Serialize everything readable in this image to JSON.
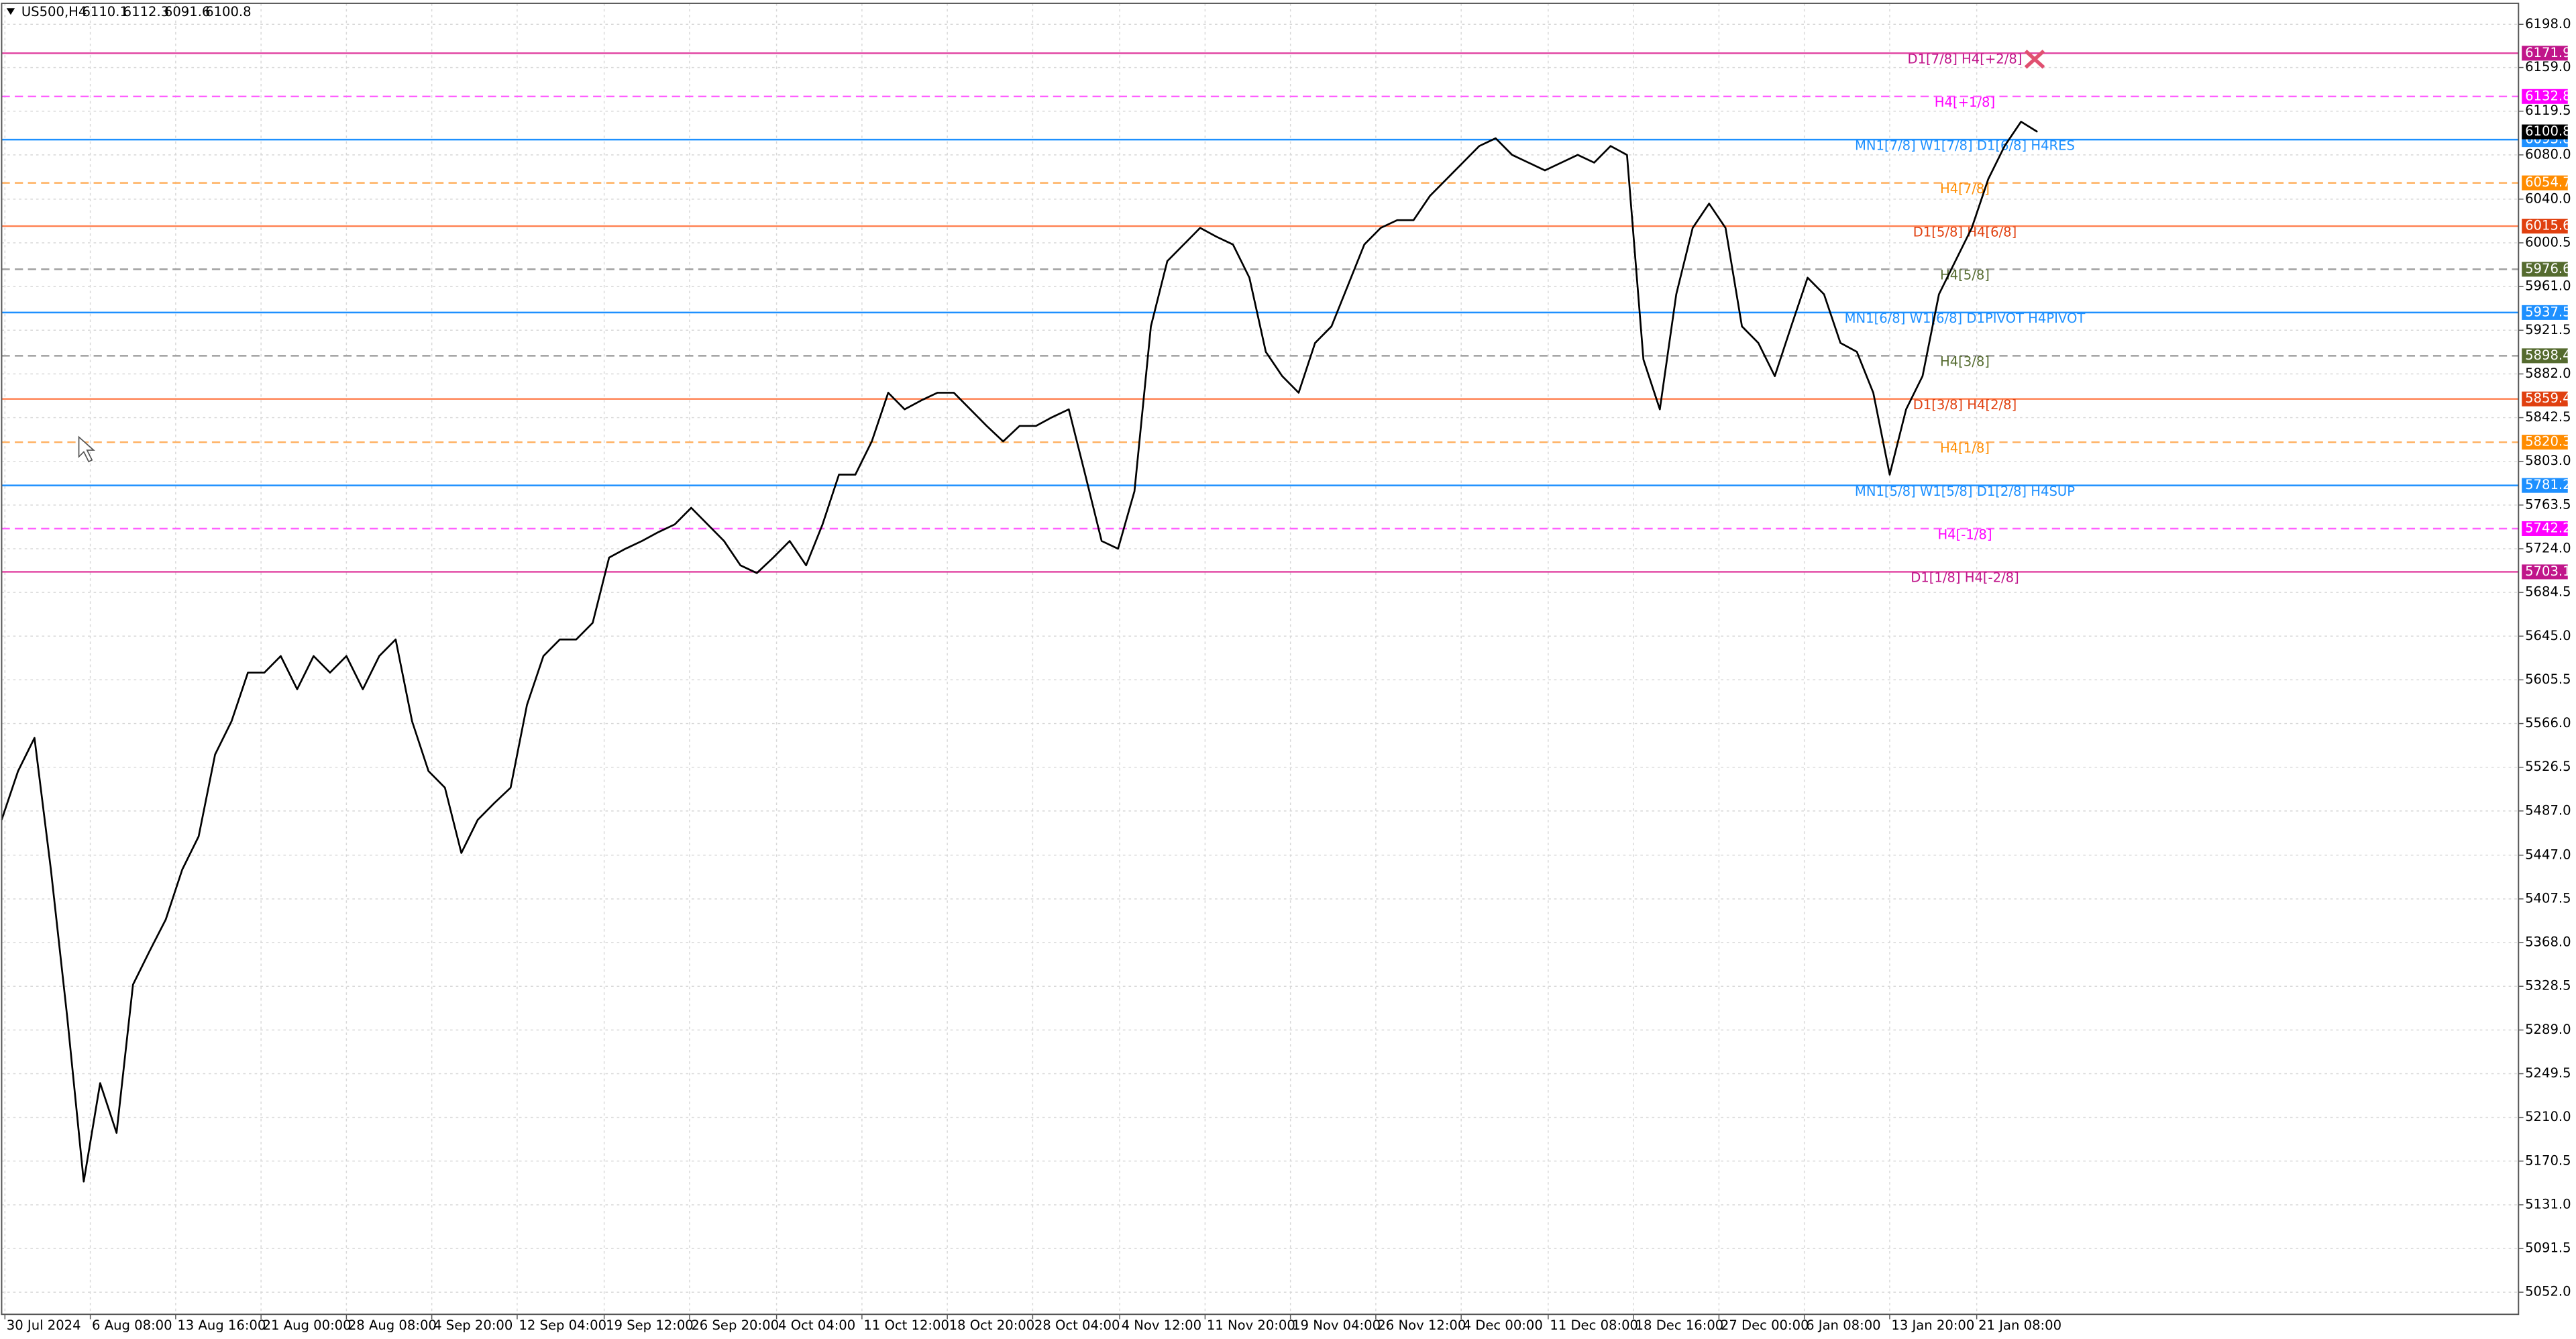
{
  "chart_data": {
    "type": "line",
    "symbol": "US500,H4",
    "ohlc": [
      6110.1,
      6112.3,
      6091.6,
      6100.8
    ],
    "x": [
      0,
      1,
      2,
      3,
      4,
      5,
      6,
      7,
      8,
      9,
      10,
      11,
      12,
      13,
      14,
      15,
      16,
      17,
      18,
      19,
      20,
      21,
      22,
      23,
      24,
      25,
      26,
      27,
      28,
      29,
      30,
      31,
      32,
      33,
      34,
      35,
      36,
      37,
      38,
      39,
      40,
      41,
      42,
      43,
      44,
      45,
      46,
      47,
      48,
      49,
      50,
      51,
      52,
      53,
      54,
      55,
      56,
      57,
      58,
      59,
      60,
      61,
      62,
      63,
      64,
      65,
      66,
      67,
      68,
      69,
      70,
      71,
      72,
      73,
      74,
      75,
      76,
      77,
      78,
      79,
      80,
      81,
      82,
      83,
      84,
      85,
      86,
      87,
      88,
      89,
      90,
      91,
      92,
      93,
      94,
      95,
      96,
      97,
      98,
      99,
      100,
      101,
      102,
      103,
      104,
      105,
      106,
      107,
      108,
      109,
      110,
      111,
      112,
      113,
      114,
      115,
      116,
      117,
      118,
      119,
      120,
      121,
      122,
      123,
      124
    ],
    "series": [
      {
        "color": "#000000",
        "values": [
          5479,
          5523,
          5553,
          5434,
          5300,
          5152,
          5241,
          5196,
          5330,
          5360,
          5389,
          5434,
          5464,
          5538,
          5568,
          5612,
          5612,
          5627,
          5597,
          5627,
          5612,
          5627,
          5597,
          5627,
          5642,
          5568,
          5523,
          5508,
          5449,
          5479,
          5494,
          5508,
          5583,
          5627,
          5642,
          5642,
          5657,
          5716,
          5724,
          5731,
          5739,
          5746,
          5761,
          5746,
          5731,
          5709,
          5702,
          5716,
          5731,
          5709,
          5746,
          5791,
          5791,
          5821,
          5865,
          5850,
          5858,
          5865,
          5865,
          5850,
          5835,
          5821,
          5835,
          5835,
          5843,
          5850,
          5791,
          5731,
          5724,
          5776,
          5925,
          5984,
          5999,
          6014,
          6006,
          5999,
          5969,
          5902,
          5880,
          5865,
          5910,
          5925,
          5962,
          5999,
          6014,
          6021,
          6021,
          6043,
          6058,
          6073,
          6088,
          6095,
          6080,
          6073,
          6066,
          6073,
          6080,
          6073,
          6088,
          6080,
          5895,
          5850,
          5954,
          6014,
          6036,
          6014,
          5925,
          5910,
          5880,
          5925,
          5969,
          5954,
          5910,
          5902,
          5865,
          5791,
          5850,
          5880,
          5954,
          5984,
          6014,
          6058,
          6088,
          6110,
          6100.8
        ]
      }
    ],
    "xlim": [
      0,
      153.3
    ],
    "xticks": [
      {
        "value": 0.2,
        "label": "30 Jul 2024"
      },
      {
        "value": 5.4,
        "label": "6 Aug 08:00"
      },
      {
        "value": 10.6,
        "label": "13 Aug 16:00"
      },
      {
        "value": 15.8,
        "label": "21 Aug 00:00"
      },
      {
        "value": 21.0,
        "label": "28 Aug 08:00"
      },
      {
        "value": 26.2,
        "label": "4 Sep 20:00"
      },
      {
        "value": 31.4,
        "label": "12 Sep 04:00"
      },
      {
        "value": 36.7,
        "label": "19 Sep 12:00"
      },
      {
        "value": 41.9,
        "label": "26 Sep 20:00"
      },
      {
        "value": 47.2,
        "label": "4 Oct 04:00"
      },
      {
        "value": 52.4,
        "label": "11 Oct 12:00"
      },
      {
        "value": 57.6,
        "label": "18 Oct 20:00"
      },
      {
        "value": 62.8,
        "label": "28 Oct 04:00"
      },
      {
        "value": 68.1,
        "label": "4 Nov 12:00"
      },
      {
        "value": 73.3,
        "label": "11 Nov 20:00"
      },
      {
        "value": 78.5,
        "label": "19 Nov 04:00"
      },
      {
        "value": 83.7,
        "label": "26 Nov 12:00"
      },
      {
        "value": 88.9,
        "label": "4 Dec 00:00"
      },
      {
        "value": 94.2,
        "label": "11 Dec 08:00"
      },
      {
        "value": 99.4,
        "label": "18 Dec 16:00"
      },
      {
        "value": 104.6,
        "label": "27 Dec 00:00"
      },
      {
        "value": 109.8,
        "label": "6 Jan 08:00"
      },
      {
        "value": 115.0,
        "label": "13 Jan 20:00"
      },
      {
        "value": 120.3,
        "label": "21 Jan 08:00"
      }
    ],
    "ylim": [
      5032,
      6217
    ],
    "yticks": [
      {
        "value": 6198,
        "label": "6198.0"
      },
      {
        "value": 6159,
        "label": "6159.0"
      },
      6119.5,
      {
        "value": 6080,
        "label": "6080.0"
      },
      {
        "value": 6040,
        "label": "6040.0"
      },
      6000.5,
      {
        "value": 5961,
        "label": "5961.0"
      },
      5921.5,
      {
        "value": 5882,
        "label": "5882.0"
      },
      5842.5,
      {
        "value": 5803,
        "label": "5803.0"
      },
      5763.5,
      {
        "value": 5724,
        "label": "5724.0"
      },
      5684.5,
      {
        "value": 5645,
        "label": "5645.0"
      },
      5605.5,
      {
        "value": 5566,
        "label": "5566.0"
      },
      5526.5,
      {
        "value": 5487,
        "label": "5487.0"
      },
      {
        "value": 5447,
        "label": "5447.0"
      },
      5407.5,
      {
        "value": 5368,
        "label": "5368.0"
      },
      5328.5,
      {
        "value": 5289,
        "label": "5289.0"
      },
      5249.5,
      {
        "value": 5210,
        "label": "5210.0"
      },
      5170.5,
      {
        "value": 5131,
        "label": "5131.0"
      },
      5091.5,
      {
        "value": 5052,
        "label": "5052.0"
      }
    ],
    "grid": true,
    "levels": [
      {
        "label": "D1[7/8] H4[+2/8]",
        "value": 6171.9,
        "color": "#e040a0",
        "text_color": "#c0158a",
        "dash": false
      },
      {
        "label": "H4[+1/8]",
        "value": 6132.8,
        "color": "#ff60ff",
        "text_color": "#ff00ff",
        "dash": true
      },
      {
        "label": "MN1[7/8] W1[7/8] D1[6/8] H4RES",
        "value": 6093.8,
        "color": "#1e90ff",
        "text_color": "#1e90ff",
        "dash": false
      },
      {
        "label": "H4[7/8]",
        "value": 6054.7,
        "color": "#ffb060",
        "text_color": "#ff8c00",
        "dash": true
      },
      {
        "label": "D1[5/8] H4[6/8]",
        "value": 6015.6,
        "color": "#ff8050",
        "text_color": "#e04010",
        "dash": false
      },
      {
        "label": "H4[5/8]",
        "value": 5976.6,
        "color": "#a0a0a0",
        "text_color": "#556b2f",
        "dash": true
      },
      {
        "label": "MN1[6/8] W1[6/8] D1PIVOT H4PIVOT",
        "value": 5937.5,
        "color": "#1e90ff",
        "text_color": "#1e90ff",
        "dash": false
      },
      {
        "label": "H4[3/8]",
        "value": 5898.4,
        "color": "#a0a0a0",
        "text_color": "#556b2f",
        "dash": true
      },
      {
        "label": "D1[3/8] H4[2/8]",
        "value": 5859.4,
        "color": "#ff8050",
        "text_color": "#e04010",
        "dash": false
      },
      {
        "label": "H4[1/8]",
        "value": 5820.3,
        "color": "#ffb060",
        "text_color": "#ff8c00",
        "dash": true
      },
      {
        "label": "MN1[5/8] W1[5/8] D1[2/8] H4SUP",
        "value": 5781.2,
        "color": "#1e90ff",
        "text_color": "#1e90ff",
        "dash": false
      },
      {
        "label": "H4[-1/8]",
        "value": 5742.2,
        "color": "#ff60ff",
        "text_color": "#ff00ff",
        "dash": true
      },
      {
        "label": "D1[1/8] H4[-2/8]",
        "value": 5703.1,
        "color": "#e040a0",
        "text_color": "#c0158a",
        "dash": false
      }
    ]
  }
}
